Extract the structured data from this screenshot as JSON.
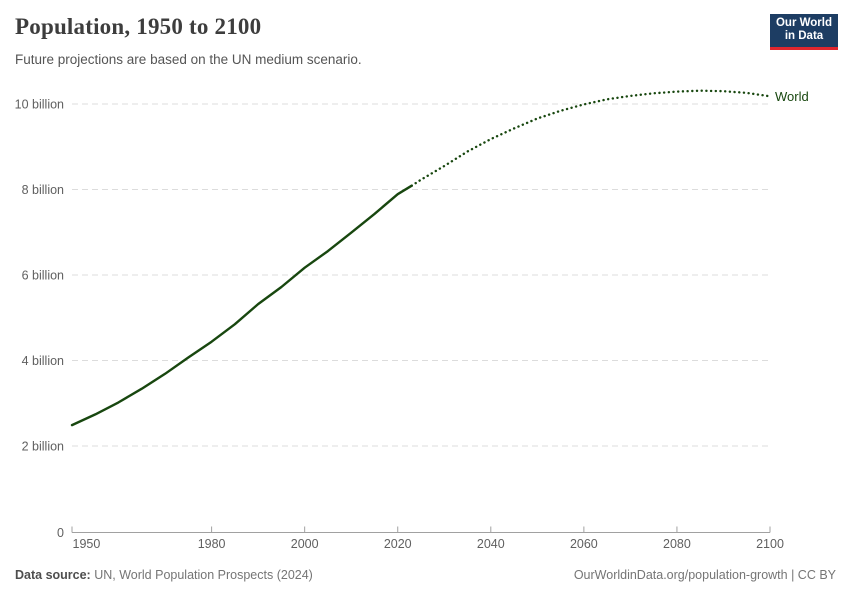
{
  "header": {
    "title": "Population, 1950 to 2100",
    "subtitle": "Future projections are based on the UN medium scenario."
  },
  "logo": {
    "line1": "Our World",
    "line2": "in Data"
  },
  "colors": {
    "line": "#18470f",
    "gridline": "#dcdcdc",
    "axis": "#a1a1a1",
    "tick_label": "#606060",
    "logo_bg": "#1d3d63",
    "logo_accent": "#e0262e"
  },
  "chart_data": {
    "type": "line",
    "title": "Population, 1950 to 2100",
    "xlabel": "",
    "ylabel": "",
    "units": "billion people",
    "grid": true,
    "legend_position": "end-of-line-right",
    "entity_label": "World",
    "xlim": [
      1950,
      2100
    ],
    "ylim_billions": [
      0,
      10.5
    ],
    "xticks": [
      1950,
      1980,
      2000,
      2020,
      2040,
      2060,
      2080,
      2100
    ],
    "yticks": [
      {
        "value": 0,
        "label": "0"
      },
      {
        "value": 2,
        "label": "2 billion"
      },
      {
        "value": 4,
        "label": "4 billion"
      },
      {
        "value": 6,
        "label": "6 billion"
      },
      {
        "value": 8,
        "label": "8 billion"
      },
      {
        "value": 10,
        "label": "10 billion"
      }
    ],
    "series": [
      {
        "name": "World (historical estimates)",
        "style": "solid",
        "color": "#18470f",
        "points": [
          [
            1950,
            2.49
          ],
          [
            1955,
            2.74
          ],
          [
            1960,
            3.02
          ],
          [
            1965,
            3.34
          ],
          [
            1970,
            3.69
          ],
          [
            1975,
            4.07
          ],
          [
            1980,
            4.44
          ],
          [
            1985,
            4.85
          ],
          [
            1990,
            5.32
          ],
          [
            1995,
            5.72
          ],
          [
            2000,
            6.17
          ],
          [
            2005,
            6.56
          ],
          [
            2010,
            6.99
          ],
          [
            2015,
            7.43
          ],
          [
            2020,
            7.89
          ],
          [
            2023,
            8.09
          ]
        ]
      },
      {
        "name": "World (UN medium projection)",
        "style": "dotted",
        "color": "#18470f",
        "points": [
          [
            2023,
            8.09
          ],
          [
            2025,
            8.23
          ],
          [
            2030,
            8.55
          ],
          [
            2035,
            8.89
          ],
          [
            2040,
            9.18
          ],
          [
            2045,
            9.43
          ],
          [
            2050,
            9.66
          ],
          [
            2055,
            9.84
          ],
          [
            2060,
            9.99
          ],
          [
            2065,
            10.11
          ],
          [
            2070,
            10.19
          ],
          [
            2075,
            10.25
          ],
          [
            2080,
            10.29
          ],
          [
            2085,
            10.31
          ],
          [
            2090,
            10.3
          ],
          [
            2095,
            10.26
          ],
          [
            2100,
            10.18
          ]
        ]
      }
    ]
  },
  "footer": {
    "source_label": "Data source:",
    "source_text": "UN, World Population Prospects (2024)",
    "credit": "OurWorldinData.org/population-growth | CC BY"
  }
}
